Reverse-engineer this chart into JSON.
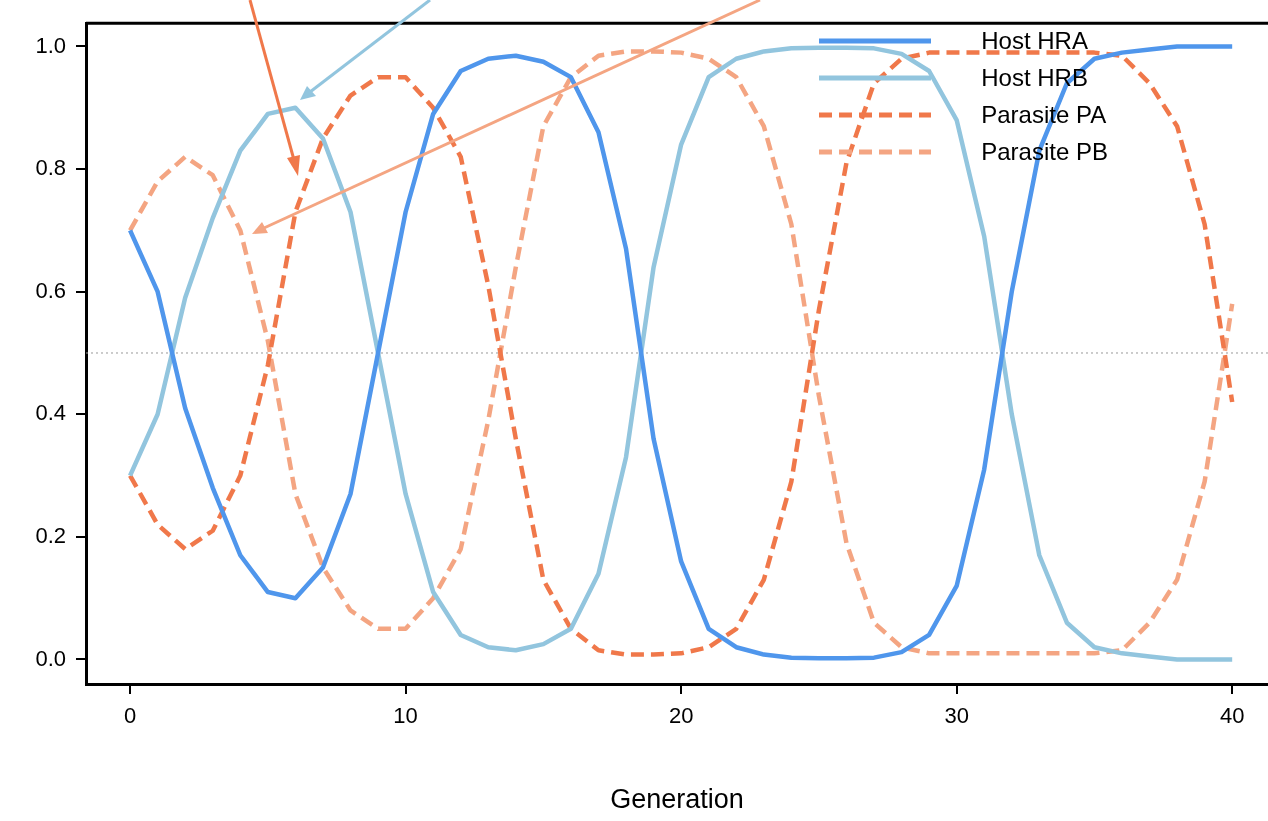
{
  "chart_data": {
    "type": "line",
    "xlabel": "Generation",
    "x": [
      0,
      1,
      2,
      3,
      4,
      5,
      6,
      7,
      8,
      9,
      10,
      11,
      12,
      13,
      14,
      15,
      16,
      17,
      18,
      19,
      20,
      21,
      22,
      23,
      24,
      25,
      26,
      27,
      28,
      29,
      30,
      31,
      32,
      33,
      34,
      35,
      36,
      37,
      38,
      39,
      40
    ],
    "series": [
      {
        "name": "Host HRA",
        "color": "#4f96ec",
        "line_style": "solid",
        "values": [
          0.7,
          0.6,
          0.41,
          0.28,
          0.17,
          0.11,
          0.1,
          0.15,
          0.27,
          0.5,
          0.73,
          0.89,
          0.96,
          0.98,
          0.985,
          0.975,
          0.95,
          0.86,
          0.67,
          0.36,
          0.16,
          0.05,
          0.02,
          0.008,
          0.003,
          0.002,
          0.002,
          0.003,
          0.012,
          0.04,
          0.12,
          0.31,
          0.6,
          0.83,
          0.94,
          0.98,
          0.99,
          0.995,
          1.0,
          1.0,
          1.0
        ]
      },
      {
        "name": "Host HRB",
        "color": "#92c5de",
        "line_style": "solid",
        "values": [
          0.3,
          0.4,
          0.59,
          0.72,
          0.83,
          0.89,
          0.9,
          0.85,
          0.73,
          0.5,
          0.27,
          0.11,
          0.04,
          0.02,
          0.015,
          0.025,
          0.05,
          0.14,
          0.33,
          0.64,
          0.84,
          0.95,
          0.98,
          0.992,
          0.997,
          0.998,
          0.998,
          0.997,
          0.988,
          0.96,
          0.88,
          0.69,
          0.4,
          0.17,
          0.06,
          0.02,
          0.01,
          0.005,
          0.0,
          0.0,
          0.0
        ]
      },
      {
        "name": "Parasite PA",
        "color": "#f0784a",
        "line_style": "dashed",
        "values": [
          0.3,
          0.22,
          0.18,
          0.21,
          0.3,
          0.48,
          0.73,
          0.85,
          0.92,
          0.95,
          0.95,
          0.9,
          0.82,
          0.61,
          0.36,
          0.13,
          0.05,
          0.015,
          0.008,
          0.008,
          0.01,
          0.02,
          0.05,
          0.13,
          0.29,
          0.57,
          0.81,
          0.94,
          0.98,
          0.99,
          0.99,
          0.99,
          0.99,
          0.99,
          0.99,
          0.99,
          0.985,
          0.94,
          0.87,
          0.71,
          0.42
        ]
      },
      {
        "name": "Parasite PB",
        "color": "#f4a582",
        "line_style": "dashed",
        "values": [
          0.7,
          0.78,
          0.82,
          0.79,
          0.7,
          0.52,
          0.27,
          0.15,
          0.08,
          0.05,
          0.05,
          0.1,
          0.18,
          0.39,
          0.64,
          0.87,
          0.95,
          0.985,
          0.992,
          0.992,
          0.99,
          0.98,
          0.95,
          0.87,
          0.71,
          0.43,
          0.19,
          0.06,
          0.02,
          0.01,
          0.01,
          0.01,
          0.01,
          0.01,
          0.01,
          0.01,
          0.015,
          0.06,
          0.13,
          0.29,
          0.58
        ]
      }
    ],
    "xlim": [
      -1.6,
      41.3
    ],
    "xticks": [
      0,
      10,
      20,
      30,
      40
    ],
    "ylim": [
      -0.04,
      1.038
    ],
    "yticks": [
      {
        "value": 0,
        "label": "0.0"
      },
      {
        "value": 0.2,
        "label": "0.2"
      },
      {
        "value": 0.4,
        "label": "0.4"
      },
      {
        "value": 0.6,
        "label": "0.6"
      },
      {
        "value": 0.8,
        "label": "0.8"
      },
      {
        "value": 1,
        "label": "1.0"
      }
    ],
    "ref_lines": [
      {
        "axis": "y",
        "value": 0.5,
        "color": "#999999",
        "line_style": "dotted"
      }
    ],
    "grid": false,
    "legend": "top right",
    "marker": "none"
  }
}
